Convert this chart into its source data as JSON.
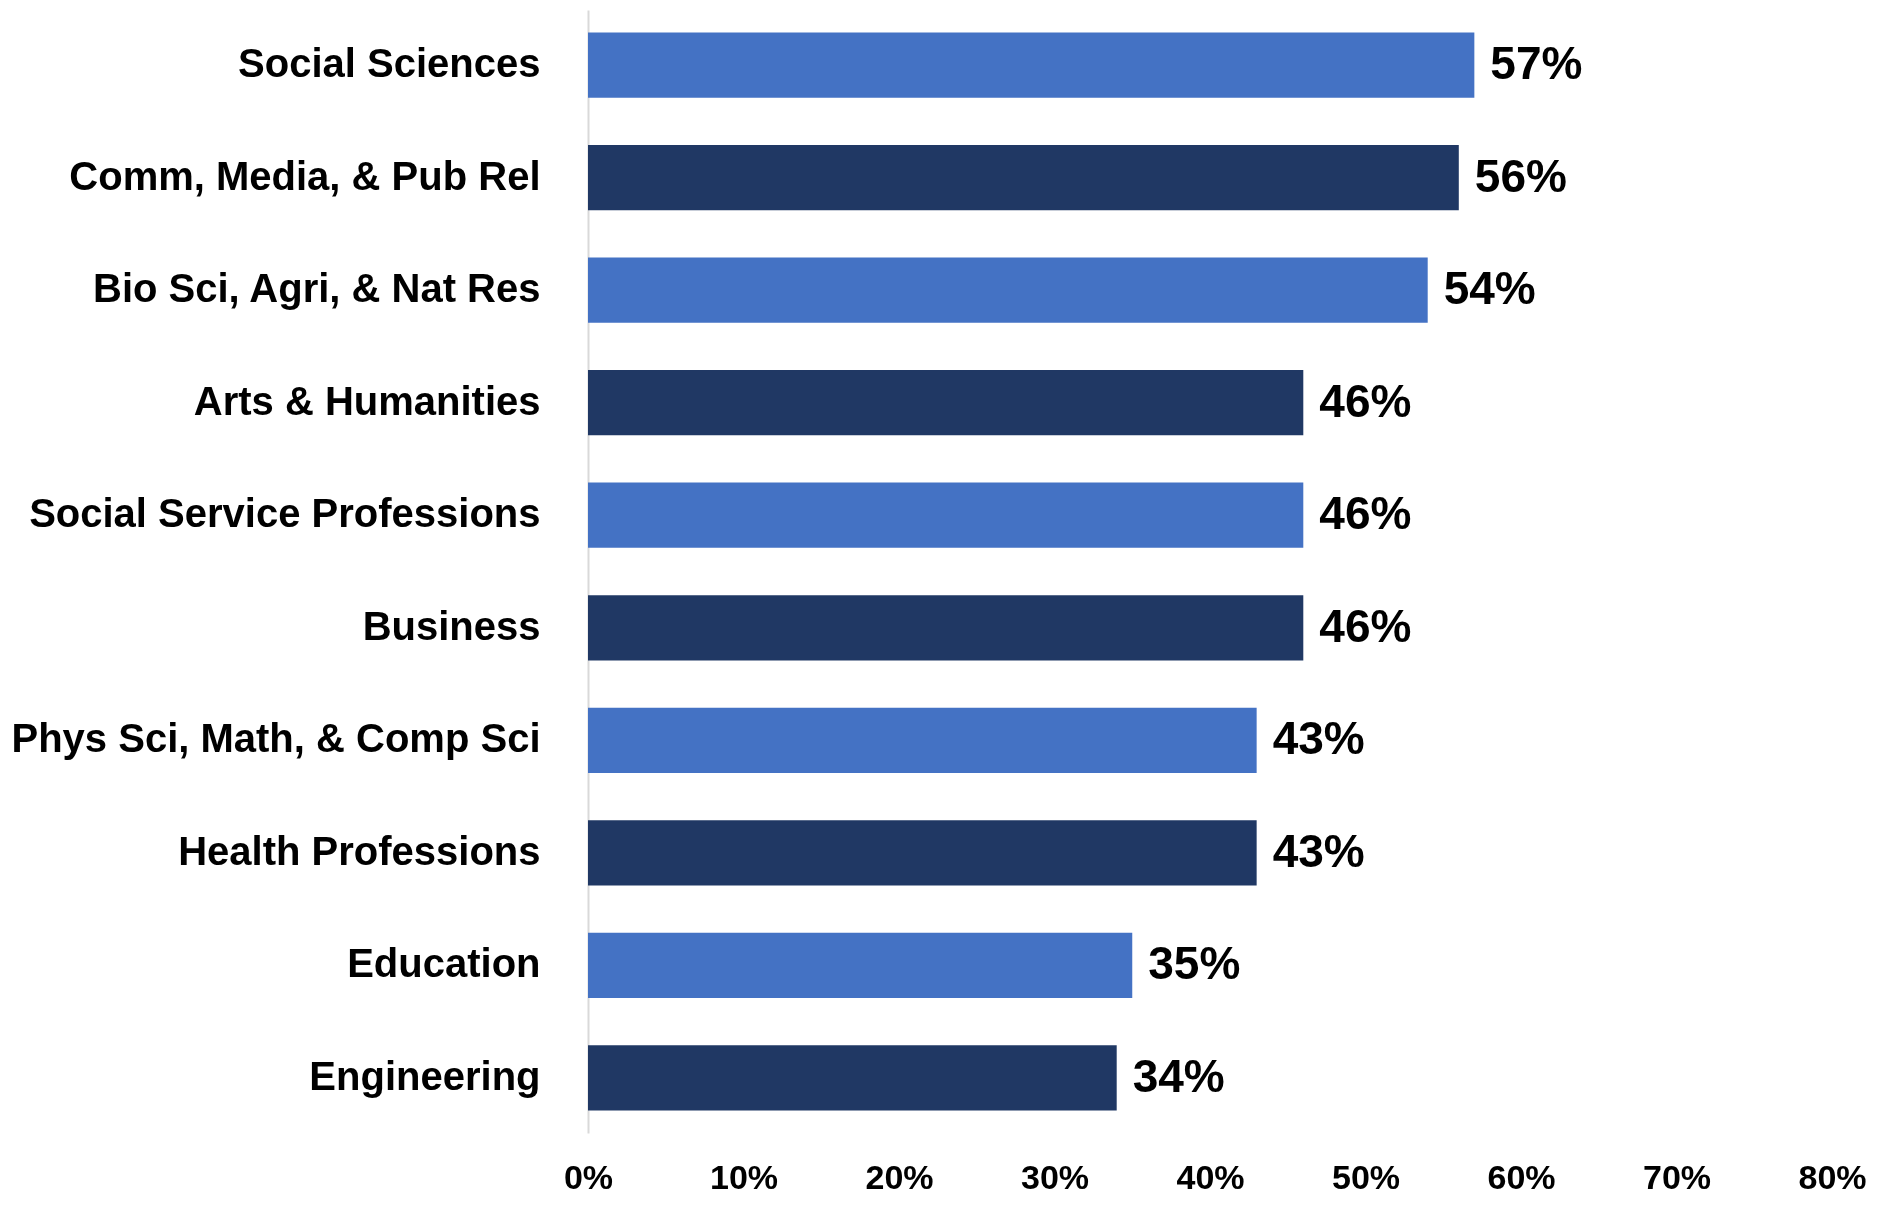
{
  "chart_data": {
    "type": "bar",
    "orientation": "horizontal",
    "categories": [
      "Social Sciences",
      "Comm, Media, & Pub Rel",
      "Bio Sci, Agri, & Nat Res",
      "Arts & Humanities",
      "Social Service Professions",
      "Business",
      "Phys Sci, Math, & Comp Sci",
      "Health Professions",
      "Education",
      "Engineering"
    ],
    "values": [
      57,
      56,
      54,
      46,
      46,
      46,
      43,
      43,
      35,
      34
    ],
    "value_labels": [
      "57%",
      "56%",
      "54%",
      "46%",
      "46%",
      "46%",
      "43%",
      "43%",
      "35%",
      "34%"
    ],
    "colors": [
      "#4472c4",
      "#203864",
      "#4472c4",
      "#203864",
      "#4472c4",
      "#203864",
      "#4472c4",
      "#203864",
      "#4472c4",
      "#203864"
    ],
    "xlim": [
      0,
      80
    ],
    "xticks": [
      {
        "value": 0,
        "label": "0%"
      },
      {
        "value": 10,
        "label": "10%"
      },
      {
        "value": 20,
        "label": "20%"
      },
      {
        "value": 30,
        "label": "30%"
      },
      {
        "value": 40,
        "label": "40%"
      },
      {
        "value": 50,
        "label": "50%"
      },
      {
        "value": 60,
        "label": "60%"
      },
      {
        "value": 70,
        "label": "70%"
      },
      {
        "value": 80,
        "label": "80%"
      }
    ],
    "grid": false
  }
}
